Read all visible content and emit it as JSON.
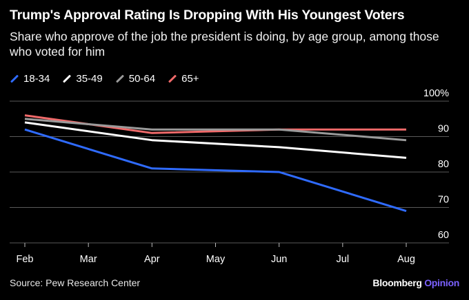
{
  "header": {
    "title": "Trump's Approval Rating Is Dropping With His Youngest Voters",
    "subtitle": "Share who approve of the job the president is doing, by age group, among those who voted for him"
  },
  "footer": {
    "source": "Source: Pew Research Center",
    "brand_name": "Bloomberg",
    "brand_accent": "Opinion"
  },
  "chart_data": {
    "type": "line",
    "title": "Trump's Approval Rating Is Dropping With His Youngest Voters",
    "subtitle": "Share who approve of the job the president is doing, by age group, among those who voted for him",
    "categories": [
      "Feb",
      "Mar",
      "Apr",
      "May",
      "Jun",
      "Jul",
      "Aug"
    ],
    "ylim": [
      60,
      100
    ],
    "yticks": [
      60,
      70,
      80,
      90,
      100
    ],
    "ytick_labels": [
      "60",
      "70",
      "80",
      "90",
      "100%"
    ],
    "grid": true,
    "legend": "top-left",
    "series": [
      {
        "name": "18-34",
        "color": "#2f6bff",
        "points": [
          [
            "Feb",
            92
          ],
          [
            "Apr",
            81
          ],
          [
            "Jun",
            80
          ],
          [
            "Aug",
            69
          ]
        ]
      },
      {
        "name": "35-49",
        "color": "#ffffff",
        "points": [
          [
            "Feb",
            94
          ],
          [
            "Apr",
            89
          ],
          [
            "Jun",
            87
          ],
          [
            "Aug",
            84
          ]
        ]
      },
      {
        "name": "50-64",
        "color": "#9a9a9a",
        "points": [
          [
            "Feb",
            95
          ],
          [
            "Apr",
            92
          ],
          [
            "Jun",
            92
          ],
          [
            "Aug",
            89
          ]
        ]
      },
      {
        "name": "65+",
        "color": "#f06a6a",
        "points": [
          [
            "Feb",
            96
          ],
          [
            "Apr",
            91
          ],
          [
            "Jun",
            92
          ],
          [
            "Aug",
            92
          ]
        ]
      }
    ]
  }
}
